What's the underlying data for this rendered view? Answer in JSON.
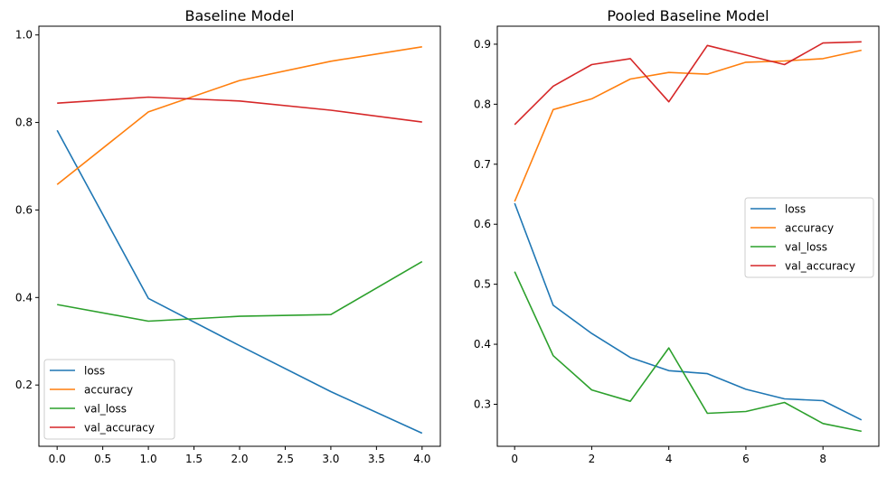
{
  "chart_data": [
    {
      "type": "line",
      "title": "Baseline Model",
      "x": [
        0,
        1,
        2,
        3,
        4
      ],
      "xlim": [
        -0.2,
        4.2
      ],
      "ylim": [
        0.06,
        1.02
      ],
      "xticks": [
        0.0,
        0.5,
        1.0,
        1.5,
        2.0,
        2.5,
        3.0,
        3.5,
        4.0
      ],
      "xtick_labels": [
        "0.0",
        "0.5",
        "1.0",
        "1.5",
        "2.0",
        "2.5",
        "3.0",
        "3.5",
        "4.0"
      ],
      "yticks": [
        0.2,
        0.4,
        0.6,
        0.8,
        1.0
      ],
      "ytick_labels": [
        "0.2",
        "0.4",
        "0.6",
        "0.8",
        "1.0"
      ],
      "grid": false,
      "legend": "lower-left",
      "series": [
        {
          "name": "loss",
          "color": "#1f77b4",
          "values": [
            0.782,
            0.398,
            0.29,
            0.185,
            0.09
          ]
        },
        {
          "name": "accuracy",
          "color": "#ff7f0e",
          "values": [
            0.658,
            0.824,
            0.896,
            0.94,
            0.973
          ]
        },
        {
          "name": "val_loss",
          "color": "#2ca02c",
          "values": [
            0.384,
            0.346,
            0.357,
            0.361,
            0.482
          ]
        },
        {
          "name": "val_accuracy",
          "color": "#d62728",
          "values": [
            0.844,
            0.858,
            0.849,
            0.828,
            0.801
          ]
        }
      ]
    },
    {
      "type": "line",
      "title": "Pooled Baseline Model",
      "x": [
        0,
        1,
        2,
        3,
        4,
        5,
        6,
        7,
        8,
        9
      ],
      "xlim": [
        -0.45,
        9.45
      ],
      "ylim": [
        0.23,
        0.93
      ],
      "xticks": [
        0,
        2,
        4,
        6,
        8
      ],
      "xtick_labels": [
        "0",
        "2",
        "4",
        "6",
        "8"
      ],
      "yticks": [
        0.3,
        0.4,
        0.5,
        0.6,
        0.7,
        0.8,
        0.9
      ],
      "ytick_labels": [
        "0.3",
        "0.4",
        "0.5",
        "0.6",
        "0.7",
        "0.8",
        "0.9"
      ],
      "grid": false,
      "legend": "center-right",
      "series": [
        {
          "name": "loss",
          "color": "#1f77b4",
          "values": [
            0.635,
            0.465,
            0.418,
            0.378,
            0.356,
            0.351,
            0.325,
            0.309,
            0.306,
            0.274
          ]
        },
        {
          "name": "accuracy",
          "color": "#ff7f0e",
          "values": [
            0.638,
            0.791,
            0.809,
            0.842,
            0.853,
            0.85,
            0.87,
            0.872,
            0.876,
            0.89
          ]
        },
        {
          "name": "val_loss",
          "color": "#2ca02c",
          "values": [
            0.521,
            0.381,
            0.324,
            0.305,
            0.394,
            0.285,
            0.288,
            0.303,
            0.268,
            0.255
          ]
        },
        {
          "name": "val_accuracy",
          "color": "#d62728",
          "values": [
            0.766,
            0.83,
            0.866,
            0.876,
            0.804,
            0.898,
            0.882,
            0.866,
            0.902,
            0.904
          ]
        }
      ]
    }
  ]
}
